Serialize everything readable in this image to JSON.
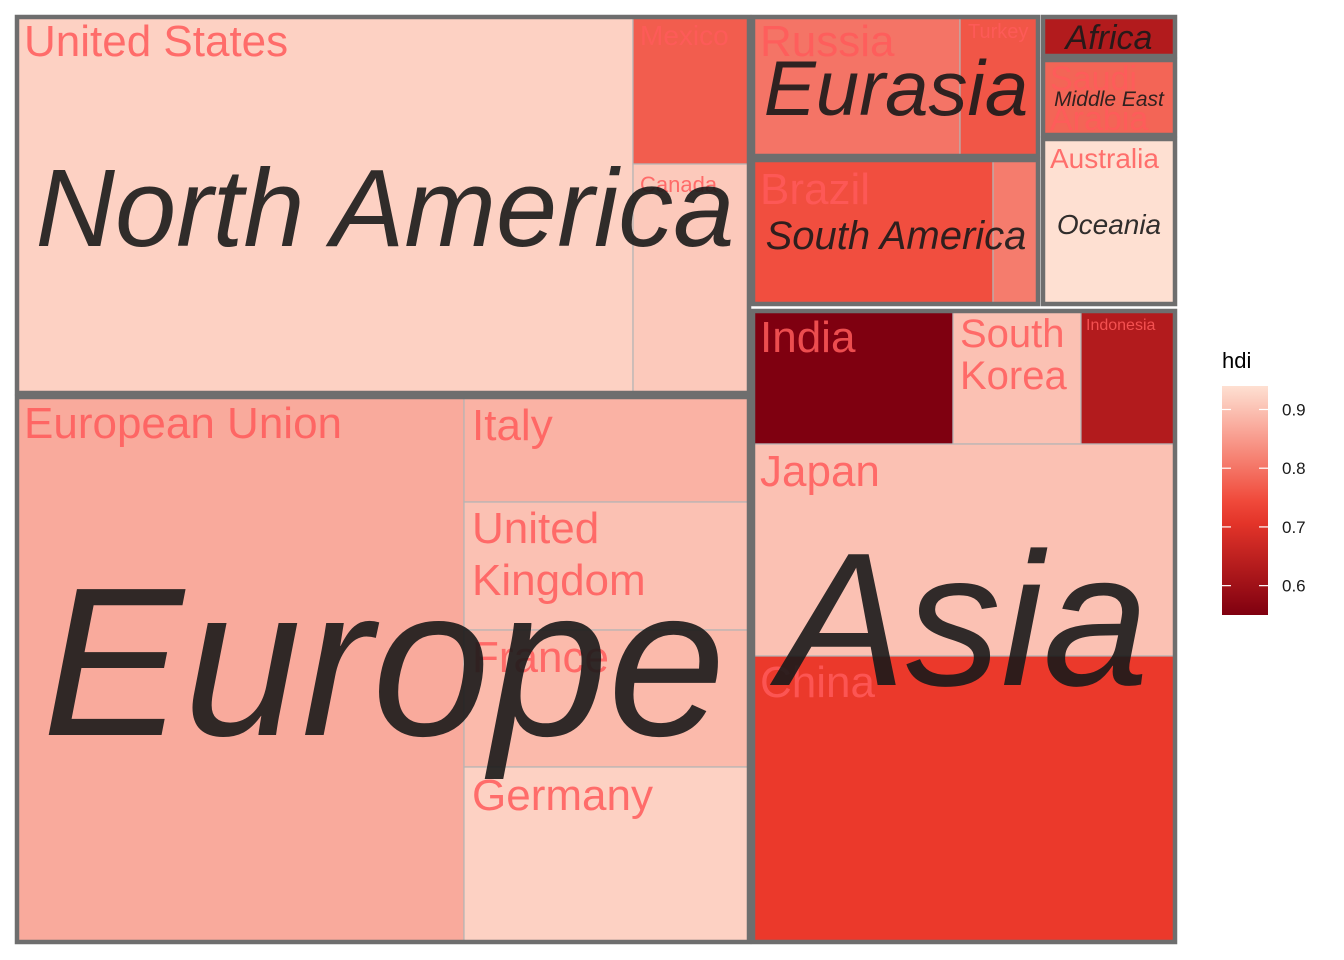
{
  "chart_data": {
    "type": "treemap",
    "fill_variable": "hdi",
    "color_scale": {
      "low_value": 0.55,
      "high_value": 0.94,
      "low_color": "#7f0010",
      "mid_color": "#ef3b2c",
      "high_color": "#fee0d2"
    },
    "legend": {
      "title": "hdi",
      "position": "right",
      "ticks": [
        0.6,
        0.7,
        0.8,
        0.9
      ],
      "tick_labels": [
        "0.6",
        "0.7",
        "0.8",
        "0.9"
      ]
    },
    "regions": [
      {
        "name": "North America",
        "countries": [
          {
            "name": "United States",
            "hdi": 0.92
          },
          {
            "name": "Mexico",
            "hdi": 0.77
          },
          {
            "name": "Canada",
            "hdi": 0.91
          }
        ]
      },
      {
        "name": "Europe",
        "countries": [
          {
            "name": "European Union",
            "hdi": 0.87
          },
          {
            "name": "Italy",
            "hdi": 0.88
          },
          {
            "name": "United Kingdom",
            "hdi": 0.9
          },
          {
            "name": "France",
            "hdi": 0.89
          },
          {
            "name": "Germany",
            "hdi": 0.92
          }
        ]
      },
      {
        "name": "Eurasia",
        "countries": [
          {
            "name": "Russia",
            "hdi": 0.8
          },
          {
            "name": "Turkey",
            "hdi": 0.76
          }
        ]
      },
      {
        "name": "Africa",
        "countries": [
          {
            "name": "",
            "hdi": 0.63
          }
        ]
      },
      {
        "name": "Middle East",
        "countries": [
          {
            "name": "Saudi Arabia",
            "hdi": 0.78
          }
        ]
      },
      {
        "name": "South America",
        "countries": [
          {
            "name": "Brazil",
            "hdi": 0.75
          },
          {
            "name": "",
            "hdi": 0.81
          }
        ]
      },
      {
        "name": "Oceania",
        "countries": [
          {
            "name": "Australia",
            "hdi": 0.94
          }
        ]
      },
      {
        "name": "Asia",
        "countries": [
          {
            "name": "India",
            "hdi": 0.55
          },
          {
            "name": "South Korea",
            "hdi": 0.9
          },
          {
            "name": "Indonesia",
            "hdi": 0.63
          },
          {
            "name": "Japan",
            "hdi": 0.9
          },
          {
            "name": "China",
            "hdi": 0.72
          }
        ]
      }
    ]
  }
}
